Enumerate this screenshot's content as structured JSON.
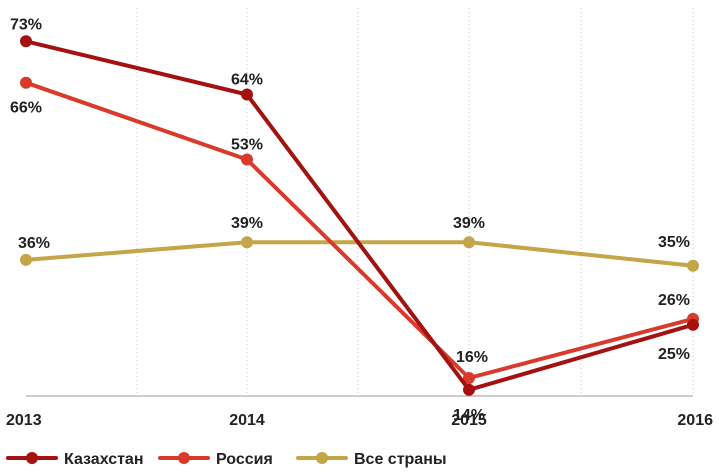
{
  "chart_data": {
    "type": "line",
    "x": [
      "2013",
      "2014",
      "2015",
      "2016"
    ],
    "ylim": [
      0,
      80
    ],
    "grid": "vertical dotted",
    "legend_placement": "bottom-left",
    "series": [
      {
        "name": "Казахстан",
        "color": "#a31111",
        "values": [
          73,
          64,
          14,
          25
        ],
        "labels": [
          "73%",
          "64%",
          "14%",
          "25%"
        ]
      },
      {
        "name": "Россия",
        "color": "#d93a2b",
        "values": [
          66,
          53,
          16,
          26
        ],
        "labels": [
          "66%",
          "53%",
          "16%",
          "26%"
        ]
      },
      {
        "name": "Все страны",
        "color": "#c4a548",
        "values": [
          36,
          39,
          39,
          35
        ],
        "labels": [
          "36%",
          "39%",
          "39%",
          "35%"
        ]
      }
    ]
  }
}
